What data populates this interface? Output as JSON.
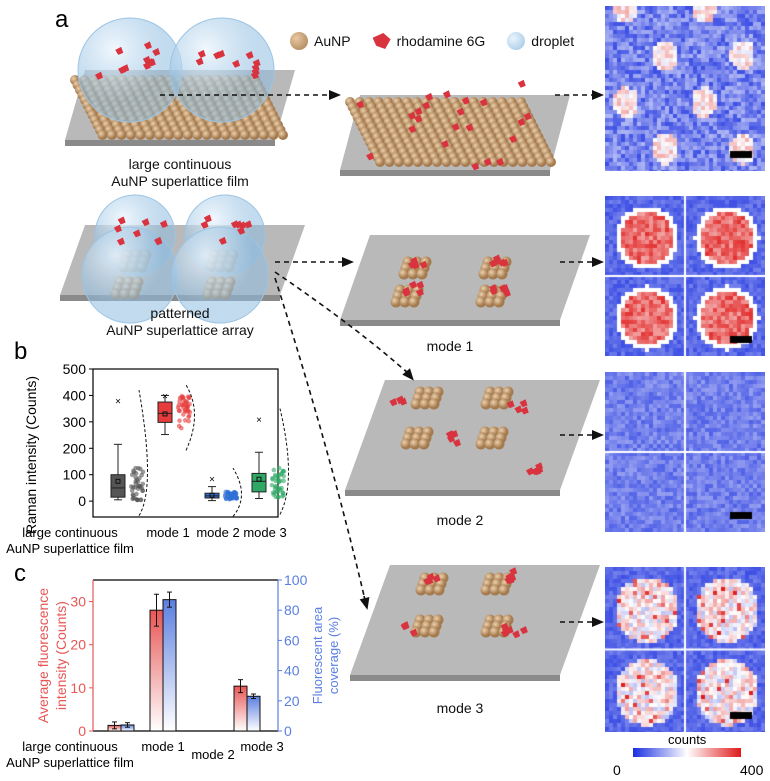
{
  "panels": {
    "a": "a",
    "b": "b",
    "c": "c"
  },
  "legend": [
    {
      "label": "AuNP",
      "color": "#c9a37a"
    },
    {
      "label": "rhodamine 6G",
      "color": "#d9333f"
    },
    {
      "label": "droplet",
      "color": "#a8cbe6"
    }
  ],
  "captions": {
    "film_line1": "large continuous",
    "film_line2": "AuNP superlattice film",
    "array_line1": "patterned",
    "array_line2": "AuNP superlattice array",
    "mode1": "mode 1",
    "mode2": "mode 2",
    "mode3": "mode 3"
  },
  "colorbar": {
    "title": "counts",
    "min": "0",
    "max": "400",
    "low_color": "#1a2fe0",
    "high_color": "#e01a1a"
  },
  "chart_data": [
    {
      "type": "box",
      "title": "",
      "ylabel": "Raman intensity (Counts)",
      "ylim": [
        -60,
        500
      ],
      "yticks": [
        "0",
        "100",
        "200",
        "300",
        "400",
        "500"
      ],
      "categories": [
        "large continuous AuNP superlattice film",
        "mode 1",
        "mode 2",
        "mode 3"
      ],
      "category_labels": [
        [
          "large continuous",
          "AuNP superlattice film"
        ],
        [
          "mode 1"
        ],
        [
          "mode 2"
        ],
        [
          "mode 3"
        ]
      ],
      "series": [
        {
          "name": "large continuous AuNP superlattice film",
          "color": "#555555",
          "q1": 15,
          "median": 50,
          "q3": 100,
          "mean": 75,
          "whisker_low": 5,
          "whisker_high": 215,
          "min": 5,
          "max": 380
        },
        {
          "name": "mode 1",
          "color": "#e83b3b",
          "q1": 298,
          "median": 332,
          "q3": 375,
          "mean": 330,
          "whisker_low": 252,
          "whisker_high": 400,
          "min": 252,
          "max": 400
        },
        {
          "name": "mode 2",
          "color": "#2f6fd6",
          "q1": 12,
          "median": 20,
          "q3": 30,
          "mean": 22,
          "whisker_low": 2,
          "whisker_high": 55,
          "min": 2,
          "max": 85
        },
        {
          "name": "mode 3",
          "color": "#2fa866",
          "q1": 35,
          "median": 75,
          "q3": 105,
          "mean": 83,
          "whisker_low": 10,
          "whisker_high": 185,
          "min": 10,
          "max": 310
        }
      ]
    },
    {
      "type": "bar",
      "title": "",
      "ylabel": "Average fluorescence intensity (Counts)",
      "ylabel_lines": [
        "Average fluorescence",
        "intensity (Counts)"
      ],
      "y2label": "Fluorescent area coverage (%)",
      "y2label_lines": [
        "Fluorescent area",
        "coverage (%)"
      ],
      "ylim": [
        0,
        35
      ],
      "y2lim": [
        0,
        100
      ],
      "yticks": [
        "0",
        "10",
        "20",
        "30"
      ],
      "y2ticks": [
        "0",
        "20",
        "40",
        "60",
        "80",
        "100"
      ],
      "categories": [
        "large continuous AuNP superlattice film",
        "mode 1",
        "mode 2",
        "mode 3"
      ],
      "category_labels": [
        [
          "large continuous",
          "AuNP superlattice film"
        ],
        [
          "mode 1"
        ],
        [
          "mode 2"
        ],
        [
          "mode 3"
        ]
      ],
      "series": [
        {
          "name": "Average fluorescence intensity",
          "axis": "left",
          "color": "#e85555",
          "values": [
            1.3,
            28,
            0,
            10.4
          ],
          "errors": [
            0.8,
            3.7,
            0,
            1.5
          ]
        },
        {
          "name": "Fluorescent area coverage",
          "axis": "right",
          "color": "#5b7fe0",
          "values": [
            4,
            87,
            0,
            23
          ],
          "errors": [
            1.5,
            5,
            0,
            1.5
          ]
        }
      ]
    }
  ]
}
